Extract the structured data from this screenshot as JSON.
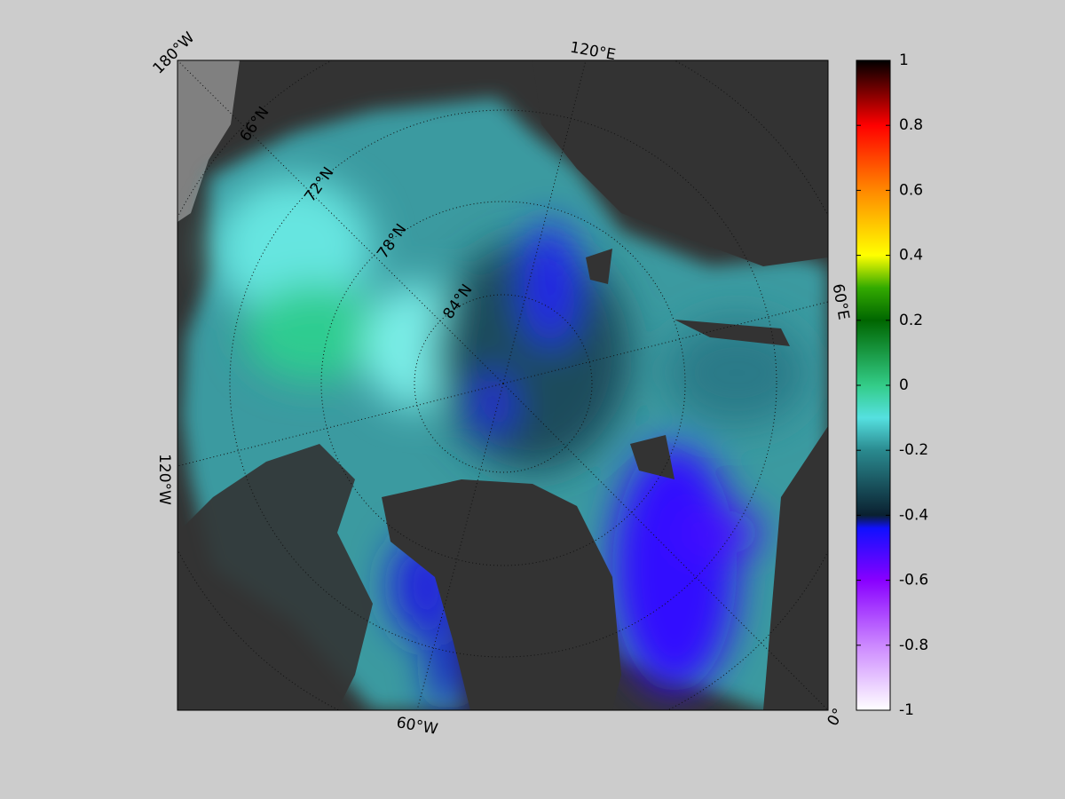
{
  "map": {
    "longitude_labels": [
      "180°W",
      "120°E",
      "60°E",
      "0°",
      "60°W",
      "120°W"
    ],
    "latitude_labels": [
      "66°N",
      "72°N",
      "78°N",
      "84°N"
    ]
  },
  "colorbar": {
    "lim": [
      -1,
      1
    ],
    "ticks": [
      1,
      0.8,
      0.6,
      0.4,
      0.2,
      0,
      -0.2,
      -0.4,
      -0.6,
      -0.8,
      -1
    ]
  }
}
